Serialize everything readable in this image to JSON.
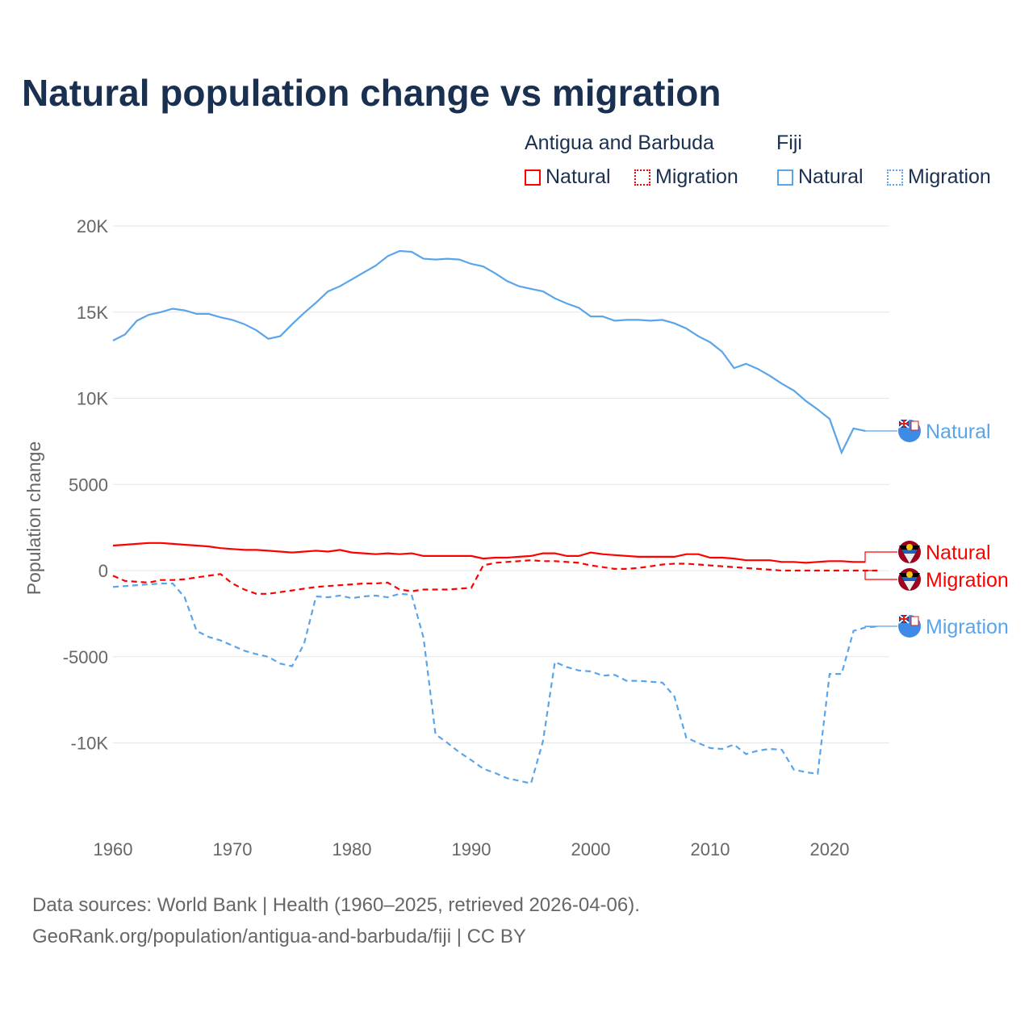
{
  "colors": {
    "antigua": "#ff0000",
    "fiji": "#5aa5ea",
    "title": "#1a3050",
    "grid": "#e6e6e6",
    "axis_text": "#666666"
  },
  "legend": {
    "groups": [
      {
        "name": "Antigua and Barbuda",
        "items": [
          "Natural",
          "Migration"
        ]
      },
      {
        "name": "Fiji",
        "items": [
          "Natural",
          "Migration"
        ]
      }
    ]
  },
  "chart_data": {
    "type": "line",
    "title": "Natural population change vs migration",
    "xlabel": "",
    "ylabel": "Population change",
    "xlim": [
      1960,
      2025
    ],
    "ylim": [
      -14000,
      21000
    ],
    "x_ticks": [
      1960,
      1970,
      1980,
      1990,
      2000,
      2010,
      2020
    ],
    "x_tick_labels": [
      "1960",
      "1970",
      "1980",
      "1990",
      "2000",
      "2010",
      "2020"
    ],
    "y_ticks": [
      20000,
      15000,
      10000,
      5000,
      0,
      -5000,
      -10000
    ],
    "y_tick_labels": [
      "20K",
      "15K",
      "10K",
      "5000",
      "0",
      "-5000",
      "-10K"
    ],
    "grid": true,
    "legend_position": "top-right",
    "series": [
      {
        "name": "Antigua and Barbuda Natural",
        "country": "Antigua and Barbuda",
        "label": "Natural",
        "style": "solid",
        "start": 1960,
        "values": [
          1450,
          1500,
          1550,
          1600,
          1600,
          1550,
          1500,
          1450,
          1400,
          1300,
          1250,
          1200,
          1200,
          1150,
          1100,
          1050,
          1100,
          1150,
          1100,
          1200,
          1050,
          1000,
          950,
          1000,
          950,
          1000,
          850,
          850,
          850,
          850,
          850,
          700,
          750,
          750,
          800,
          850,
          1000,
          1000,
          850,
          850,
          1050,
          950,
          900,
          850,
          800,
          800,
          800,
          800,
          950,
          950,
          750,
          750,
          700,
          600,
          600,
          600,
          500,
          500,
          450,
          500,
          550,
          550,
          500,
          500
        ]
      },
      {
        "name": "Antigua and Barbuda Migration",
        "country": "Antigua and Barbuda",
        "label": "Migration",
        "style": "dashed",
        "start": 1960,
        "values": [
          -300,
          -600,
          -650,
          -700,
          -550,
          -550,
          -500,
          -400,
          -300,
          -200,
          -750,
          -1100,
          -1350,
          -1350,
          -1250,
          -1150,
          -1050,
          -950,
          -900,
          -850,
          -800,
          -750,
          -750,
          -700,
          -1100,
          -1200,
          -1100,
          -1100,
          -1100,
          -1050,
          -1000,
          300,
          450,
          500,
          550,
          600,
          550,
          550,
          500,
          450,
          300,
          200,
          100,
          100,
          150,
          250,
          350,
          400,
          400,
          350,
          300,
          250,
          200,
          150,
          100,
          50,
          0,
          0,
          0,
          0,
          0,
          0,
          0,
          0,
          0
        ]
      },
      {
        "name": "Fiji Natural",
        "country": "Fiji",
        "label": "Natural",
        "style": "solid",
        "start": 1960,
        "values": [
          13350,
          13700,
          14500,
          14850,
          15000,
          15200,
          15100,
          14900,
          14900,
          14700,
          14550,
          14300,
          13950,
          13450,
          13600,
          14300,
          14950,
          15550,
          16200,
          16500,
          16900,
          17300,
          17700,
          18250,
          18550,
          18500,
          18100,
          18050,
          18100,
          18050,
          17800,
          17650,
          17250,
          16800,
          16500,
          16350,
          16200,
          15800,
          15500,
          15250,
          14750,
          14750,
          14500,
          14550,
          14550,
          14500,
          14550,
          14350,
          14050,
          13600,
          13250,
          12700,
          11750,
          12000,
          11700,
          11300,
          10850,
          10450,
          9850,
          9350,
          8800,
          6850,
          8250,
          8100
        ]
      },
      {
        "name": "Fiji Migration",
        "country": "Fiji",
        "label": "Migration",
        "style": "dashed",
        "start": 1960,
        "values": [
          -950,
          -900,
          -850,
          -800,
          -750,
          -750,
          -1550,
          -3500,
          -3850,
          -4050,
          -4350,
          -4650,
          -4850,
          -5000,
          -5400,
          -5550,
          -4250,
          -1500,
          -1550,
          -1450,
          -1600,
          -1500,
          -1450,
          -1550,
          -1350,
          -1400,
          -3900,
          -9500,
          -10000,
          -10550,
          -11000,
          -11500,
          -11750,
          -12050,
          -12200,
          -12350,
          -9900,
          -5300,
          -5600,
          -5800,
          -5850,
          -6100,
          -6050,
          -6400,
          -6400,
          -6450,
          -6500,
          -7300,
          -9700,
          -10000,
          -10300,
          -10350,
          -10100,
          -10650,
          -10450,
          -10350,
          -10400,
          -11550,
          -11700,
          -11800,
          -6000,
          -6000,
          -3500,
          -3300,
          -3250
        ]
      }
    ]
  },
  "source": {
    "line1": "Data sources: World Bank | Health (1960–2025, retrieved 2026-04-06).",
    "line2": "GeoRank.org/population/antigua-and-barbuda/fiji | CC BY"
  }
}
